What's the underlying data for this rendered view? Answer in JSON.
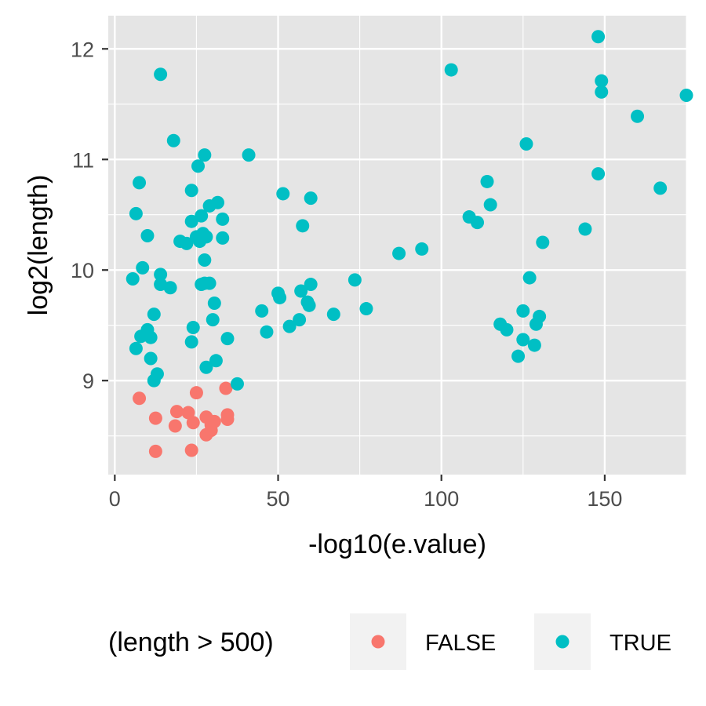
{
  "colors": {
    "panel_bg": "#e5e5e5",
    "grid": "#ffffff",
    "false_color": "#f8766d",
    "true_color": "#00bfc4",
    "legend_key_bg": "#f2f2f2",
    "axis_ticks": "#333333"
  },
  "chart_data": {
    "type": "scatter",
    "title": "",
    "xlabel": "-log10(e.value)",
    "ylabel": "log2(length)",
    "xlim": [
      -2,
      175
    ],
    "ylim": [
      8.15,
      12.3
    ],
    "x_ticks": [
      0,
      50,
      100,
      150
    ],
    "x_tick_labels": [
      "0",
      "50",
      "100",
      "150"
    ],
    "y_ticks": [
      9,
      10,
      11,
      12
    ],
    "y_tick_labels": [
      "9",
      "10",
      "11",
      "12"
    ],
    "grid": true,
    "legend": {
      "title": "(length > 500)",
      "position": "bottom",
      "entries": [
        "FALSE",
        "TRUE"
      ]
    },
    "series": [
      {
        "name": "FALSE",
        "color": "#f8766d",
        "points": [
          [
            7.5,
            8.84
          ],
          [
            12.5,
            8.66
          ],
          [
            12.5,
            8.36
          ],
          [
            19,
            8.72
          ],
          [
            18.5,
            8.59
          ],
          [
            22.5,
            8.71
          ],
          [
            24,
            8.62
          ],
          [
            25,
            8.89
          ],
          [
            23.5,
            8.37
          ],
          [
            28,
            8.67
          ],
          [
            28,
            8.51
          ],
          [
            29.5,
            8.55
          ],
          [
            30.5,
            8.63
          ],
          [
            29.5,
            8.6
          ],
          [
            34,
            8.93
          ],
          [
            34.5,
            8.69
          ],
          [
            34.5,
            8.65
          ]
        ]
      },
      {
        "name": "TRUE",
        "color": "#00bfc4",
        "points": [
          [
            14,
            11.77
          ],
          [
            18,
            11.17
          ],
          [
            7.5,
            10.79
          ],
          [
            6.5,
            10.51
          ],
          [
            10,
            10.31
          ],
          [
            8.5,
            10.02
          ],
          [
            5.5,
            9.92
          ],
          [
            14,
            9.96
          ],
          [
            14,
            9.87
          ],
          [
            17,
            9.84
          ],
          [
            12,
            9.6
          ],
          [
            10,
            9.46
          ],
          [
            8,
            9.4
          ],
          [
            11,
            9.39
          ],
          [
            6.5,
            9.29
          ],
          [
            11,
            9.2
          ],
          [
            13,
            9.06
          ],
          [
            12,
            9.0
          ],
          [
            27.5,
            11.04
          ],
          [
            25.5,
            10.94
          ],
          [
            23.5,
            10.72
          ],
          [
            23.5,
            10.44
          ],
          [
            26.5,
            10.49
          ],
          [
            29,
            10.58
          ],
          [
            31.5,
            10.61
          ],
          [
            33,
            10.46
          ],
          [
            20,
            10.26
          ],
          [
            22,
            10.24
          ],
          [
            25,
            10.3
          ],
          [
            26,
            10.26
          ],
          [
            27,
            10.33
          ],
          [
            28,
            10.3
          ],
          [
            33,
            10.29
          ],
          [
            27.5,
            10.09
          ],
          [
            26.5,
            9.87
          ],
          [
            27.5,
            9.88
          ],
          [
            29,
            9.88
          ],
          [
            30.5,
            9.7
          ],
          [
            30,
            9.55
          ],
          [
            24,
            9.48
          ],
          [
            23.5,
            9.35
          ],
          [
            34.5,
            9.38
          ],
          [
            31,
            9.18
          ],
          [
            28,
            9.12
          ],
          [
            37.5,
            8.97
          ],
          [
            41,
            11.04
          ],
          [
            51.5,
            10.69
          ],
          [
            57.5,
            10.4
          ],
          [
            60,
            10.65
          ],
          [
            50,
            9.79
          ],
          [
            50.5,
            9.75
          ],
          [
            45,
            9.63
          ],
          [
            46.5,
            9.44
          ],
          [
            53.5,
            9.49
          ],
          [
            56.5,
            9.55
          ],
          [
            57,
            9.81
          ],
          [
            59,
            9.71
          ],
          [
            59.5,
            9.68
          ],
          [
            60,
            9.87
          ],
          [
            67,
            9.6
          ],
          [
            73.5,
            9.91
          ],
          [
            77,
            9.65
          ],
          [
            87,
            10.15
          ],
          [
            94,
            10.19
          ],
          [
            103,
            11.81
          ],
          [
            108.5,
            10.48
          ],
          [
            111,
            10.43
          ],
          [
            114,
            10.8
          ],
          [
            115,
            10.59
          ],
          [
            118,
            9.51
          ],
          [
            120,
            9.46
          ],
          [
            123.5,
            9.22
          ],
          [
            125,
            9.63
          ],
          [
            125,
            9.37
          ],
          [
            126,
            11.14
          ],
          [
            127,
            9.93
          ],
          [
            128.5,
            9.32
          ],
          [
            129,
            9.51
          ],
          [
            130,
            9.58
          ],
          [
            131,
            10.25
          ],
          [
            144,
            10.37
          ],
          [
            148,
            12.11
          ],
          [
            148,
            10.87
          ],
          [
            149,
            11.71
          ],
          [
            149,
            11.61
          ],
          [
            160,
            11.39
          ],
          [
            167,
            10.74
          ],
          [
            175,
            11.58
          ]
        ]
      }
    ]
  }
}
